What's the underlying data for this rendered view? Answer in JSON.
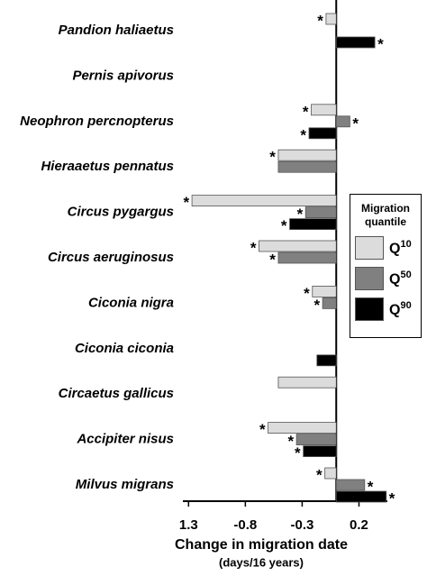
{
  "chart_data": {
    "type": "hbar",
    "categories": [
      "Pandion haliaetus",
      "Pernis apivorus",
      "Neophron percnopterus",
      "Hieraaetus pennatus",
      "Circus pygargus",
      "Circus aeruginosus",
      "Ciconia nigra",
      "Ciconia ciconia",
      "Circaetus gallicus",
      "Accipiter nisus",
      "Milvus migrans"
    ],
    "series": [
      {
        "name": "Q10",
        "color": "#dcdcdc",
        "values": [
          -0.09,
          null,
          -0.22,
          -0.51,
          -1.27,
          -0.68,
          -0.21,
          null,
          -0.51,
          -0.6,
          -0.1
        ],
        "significance": [
          "*",
          null,
          "*",
          "*",
          "*",
          "*",
          "*",
          null,
          null,
          "*",
          "*"
        ]
      },
      {
        "name": "Q50",
        "color": "#808080",
        "values": [
          null,
          null,
          0.12,
          -0.51,
          -0.27,
          -0.51,
          -0.12,
          null,
          null,
          -0.35,
          0.25
        ],
        "significance": [
          null,
          null,
          "*",
          null,
          "*",
          "*",
          "*",
          null,
          null,
          "*",
          "*"
        ]
      },
      {
        "name": "Q90",
        "color": "#000000",
        "values": [
          0.34,
          null,
          -0.24,
          null,
          -0.41,
          null,
          null,
          -0.17,
          null,
          -0.29,
          0.44
        ],
        "significance": [
          "*",
          null,
          "*",
          null,
          "*",
          null,
          null,
          null,
          null,
          "*",
          "*"
        ]
      }
    ],
    "legend_title": "Migration quantile",
    "xlabel": "Change in migration date",
    "xlabel_sub": "(days/16 years)",
    "xlim": [
      -1.35,
      0.45
    ],
    "xticks": [
      {
        "value": -1.3,
        "label": "1.3"
      },
      -0.8,
      -0.3,
      0.2
    ]
  }
}
